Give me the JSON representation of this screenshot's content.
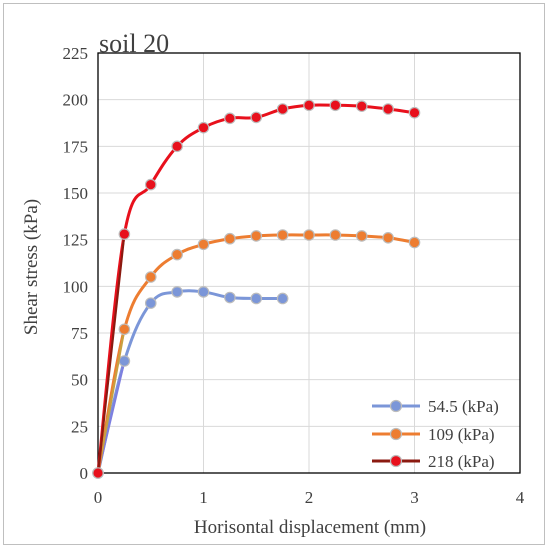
{
  "chart_data": {
    "type": "line",
    "title": "soil 20",
    "xlabel": "Horisontal displacement (mm)",
    "ylabel": "Shear stress (kPa)",
    "xlim": [
      0,
      4
    ],
    "ylim": [
      0,
      225
    ],
    "xticks": [
      0,
      1,
      2,
      3,
      4
    ],
    "yticks": [
      0,
      25,
      50,
      75,
      100,
      125,
      150,
      175,
      200,
      225
    ],
    "grid": true,
    "legend_position": "bottom-right",
    "series": [
      {
        "name": "54.5 (kPa)",
        "color": "#7b96d8",
        "line_color": "#7d7fe0",
        "x": [
          0,
          0.25,
          0.5,
          0.75,
          1.0,
          1.25,
          1.5,
          1.75
        ],
        "y": [
          0,
          60,
          91,
          97,
          97,
          94,
          93.5,
          93.5
        ]
      },
      {
        "name": "109 (kPa)",
        "color": "#ed7d31",
        "line_color": "#c8a040",
        "x": [
          0,
          0.25,
          0.5,
          0.75,
          1.0,
          1.25,
          1.5,
          1.75,
          2.0,
          2.25,
          2.5,
          2.75,
          3.0
        ],
        "y": [
          0,
          77,
          105,
          117,
          122.5,
          125.5,
          127,
          127.5,
          127.5,
          127.5,
          127,
          126,
          123.5
        ]
      },
      {
        "name": "218 (kPa)",
        "color": "#e8101c",
        "line_color": "#8b1a10",
        "x": [
          0,
          0.25,
          0.5,
          0.75,
          1.0,
          1.25,
          1.5,
          1.75,
          2.0,
          2.25,
          2.5,
          2.75,
          3.0
        ],
        "y": [
          0,
          128,
          154.5,
          175,
          185,
          190,
          190.5,
          195,
          197,
          197,
          196.5,
          195,
          193
        ]
      }
    ]
  }
}
